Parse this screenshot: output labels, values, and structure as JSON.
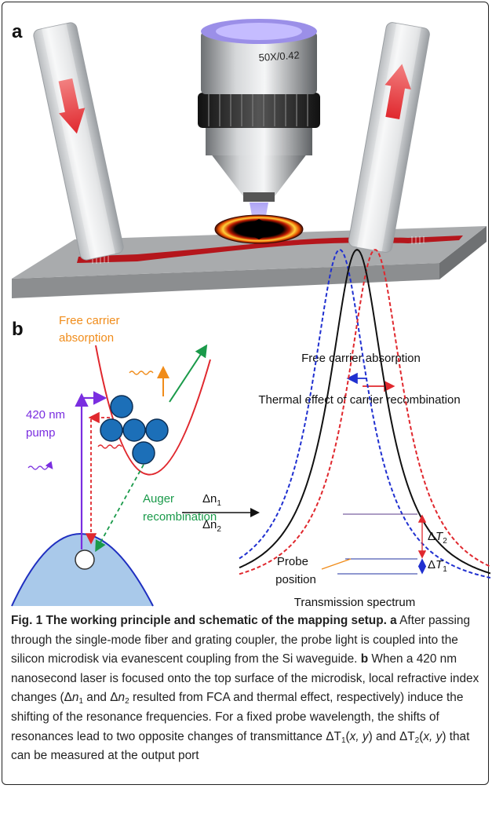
{
  "panel_a": {
    "label": "a",
    "objective_label": "50X/0.42"
  },
  "panel_b": {
    "label": "b",
    "free_carrier_absorption_left": [
      "Free carrier",
      "absorption"
    ],
    "pump": [
      "420 nm",
      "pump"
    ],
    "auger": [
      "Auger",
      "recombination"
    ],
    "delta_n1": [
      "Δn",
      "1"
    ],
    "delta_n2": [
      "Δn",
      "2"
    ],
    "free_carrier_absorption_right": "Free carrier absorption",
    "thermal_effect": "Thermal effect of carrier recombination",
    "delta_t2": [
      "Δ",
      "T",
      "2"
    ],
    "delta_t1": [
      "Δ",
      "T",
      "1"
    ],
    "probe_position": [
      "Probe",
      "position"
    ],
    "transmission_spectrum": "Transmission spectrum"
  },
  "caption": {
    "parts": [
      "Fig. 1 The working principle and schematic of the mapping setup.",
      "a",
      "After passing through the single-mode fiber and grating coupler, the probe light is coupled into the silicon microdisk via evanescent coupling from the Si waveguide.",
      "b",
      "When a 420 nm nanosecond laser is focused onto the top surface of the microdisk, local refractive index changes (Δ",
      "n",
      "1",
      "and Δ",
      "n",
      "2",
      "resulted from FCA and thermal effect, respectively) induce the shifting of the resonance frequencies. For a fixed probe wavelength, the shifts of resonances lead to two opposite changes of transmittance Δ",
      "T",
      "1",
      "(",
      "x, y",
      ") and Δ",
      "T",
      "2",
      "(",
      "x, y",
      ") that can be measured at the output port"
    ]
  }
}
